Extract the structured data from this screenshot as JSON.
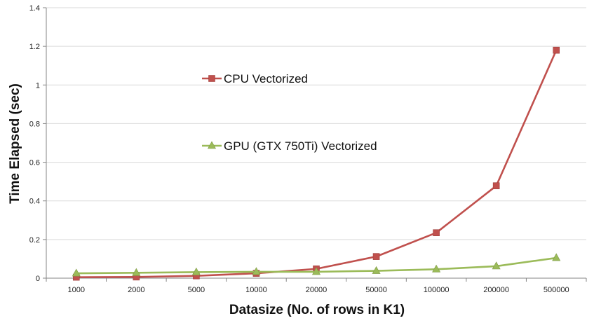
{
  "chart_data": {
    "type": "line",
    "xlabel": "Datasize (No. of rows in K1)",
    "ylabel": "Time Elapsed (sec)",
    "categories": [
      "1000",
      "2000",
      "5000",
      "10000",
      "20000",
      "50000",
      "100000",
      "200000",
      "500000"
    ],
    "ylim": [
      0,
      1.4
    ],
    "yticks": [
      "0",
      "0.2",
      "0.4",
      "0.6",
      "0.8",
      "1",
      "1.2",
      "1.4"
    ],
    "grid": true,
    "legend_position": "inside-left",
    "series": [
      {
        "name": "CPU Vectorized",
        "color": "#c0504d",
        "marker": "square",
        "values": [
          0.005,
          0.006,
          0.012,
          0.025,
          0.048,
          0.112,
          0.235,
          0.478,
          1.18
        ]
      },
      {
        "name": "GPU (GTX 750Ti) Vectorized",
        "color": "#9bbb59",
        "marker": "triangle",
        "values": [
          0.025,
          0.028,
          0.031,
          0.033,
          0.033,
          0.038,
          0.046,
          0.062,
          0.105
        ]
      }
    ]
  }
}
